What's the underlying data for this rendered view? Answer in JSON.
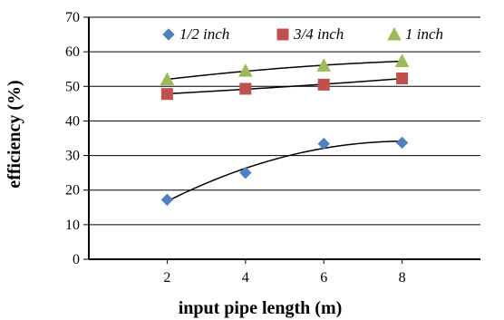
{
  "chart_data": {
    "type": "scatter",
    "title": "",
    "xlabel": "input pipe length (m)",
    "ylabel": "efficiency  (%)",
    "x_ticks": [
      "2",
      "4",
      "6",
      "8"
    ],
    "y_ticks": [
      "0",
      "10",
      "20",
      "30",
      "40",
      "50",
      "60",
      "70"
    ],
    "xlim": [
      0,
      10
    ],
    "ylim": [
      0,
      70
    ],
    "grid": "horizontal",
    "legend_position": "top",
    "trendline": "polynomial",
    "series": [
      {
        "name": "1/2 inch",
        "color": "#4f81bd",
        "marker": "diamond",
        "x": [
          2,
          4,
          6,
          8
        ],
        "y": [
          17.2,
          25.0,
          33.4,
          33.7
        ]
      },
      {
        "name": "3/4 inch",
        "color": "#c0504d",
        "marker": "square",
        "x": [
          2,
          4,
          6,
          8
        ],
        "y": [
          47.8,
          49.3,
          50.5,
          52.3
        ]
      },
      {
        "name": "1 inch",
        "color": "#9bbb59",
        "marker": "triangle",
        "x": [
          2,
          4,
          6,
          8
        ],
        "y": [
          52.0,
          54.5,
          56.0,
          57.3
        ]
      }
    ]
  }
}
